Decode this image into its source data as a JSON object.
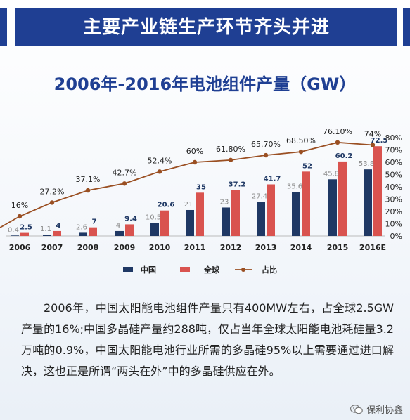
{
  "banner": {
    "title": "主要产业链生产环节齐头并进"
  },
  "paragraph": "2006年，中国太阳能电池组件产量只有400MW左右，占全球2.5GW产量的16%;中国多晶硅产量约288吨，仅占当年全球太阳能电池耗硅量3.2万吨的0.9%，中国太阳能电池行业所需的多晶硅95%以上需要通过进口解决，这也正是所谓“两头在外”中的多晶硅供应在外。",
  "watermark": {
    "text": "保利协鑫",
    "icon": "wechat-icon"
  },
  "colors": {
    "china": "#1f3864",
    "global": "#d9534f",
    "share": "#9a4f22",
    "banner": "#1f3f93"
  },
  "chart_data": {
    "type": "bar",
    "title": "2006年-2016年电池组件产量（GW）",
    "categories": [
      "2006",
      "2007",
      "2008",
      "2009",
      "2010",
      "2011",
      "2012",
      "2013",
      "2014",
      "2015",
      "2016E"
    ],
    "series": [
      {
        "name": "中国",
        "values": [
          0.4,
          1.1,
          2.6,
          4,
          10.5,
          21,
          23,
          27.4,
          35.6,
          45.8,
          53.8
        ],
        "labels": [
          "0.4",
          "1.1",
          "2.6",
          "4",
          "10.5",
          "21",
          "23",
          "27.4",
          "35.6",
          "45.8",
          "53.8"
        ]
      },
      {
        "name": "全球",
        "values": [
          2.5,
          4,
          7,
          9.4,
          20.6,
          35,
          37.2,
          41.7,
          52,
          60.2,
          72.5
        ],
        "labels": [
          "2.5",
          "4",
          "7",
          "9.4",
          "20.6",
          "35",
          "37.2",
          "41.7",
          "52",
          "60.2",
          "72.5"
        ]
      },
      {
        "name": "占比",
        "type": "line",
        "axis": "right",
        "values": [
          16,
          27.2,
          37.1,
          42.7,
          52.4,
          60,
          61.8,
          65.7,
          68.5,
          76.1,
          74
        ],
        "labels": [
          "16%",
          "27.2%",
          "37.1%",
          "42.7%",
          "52.4%",
          "60%",
          "61.80%",
          "65.70%",
          "68.50%",
          "76.10%",
          "74%"
        ]
      }
    ],
    "right_axis": {
      "range": [
        0,
        80
      ],
      "ticks": [
        "0%",
        "10%",
        "20%",
        "30%",
        "40%",
        "50%",
        "60%",
        "70%",
        "80%"
      ]
    },
    "ylim": [
      0,
      80
    ],
    "legend": {
      "position": "bottom",
      "items": [
        "中国",
        "全球",
        "占比"
      ]
    },
    "grid": false
  }
}
